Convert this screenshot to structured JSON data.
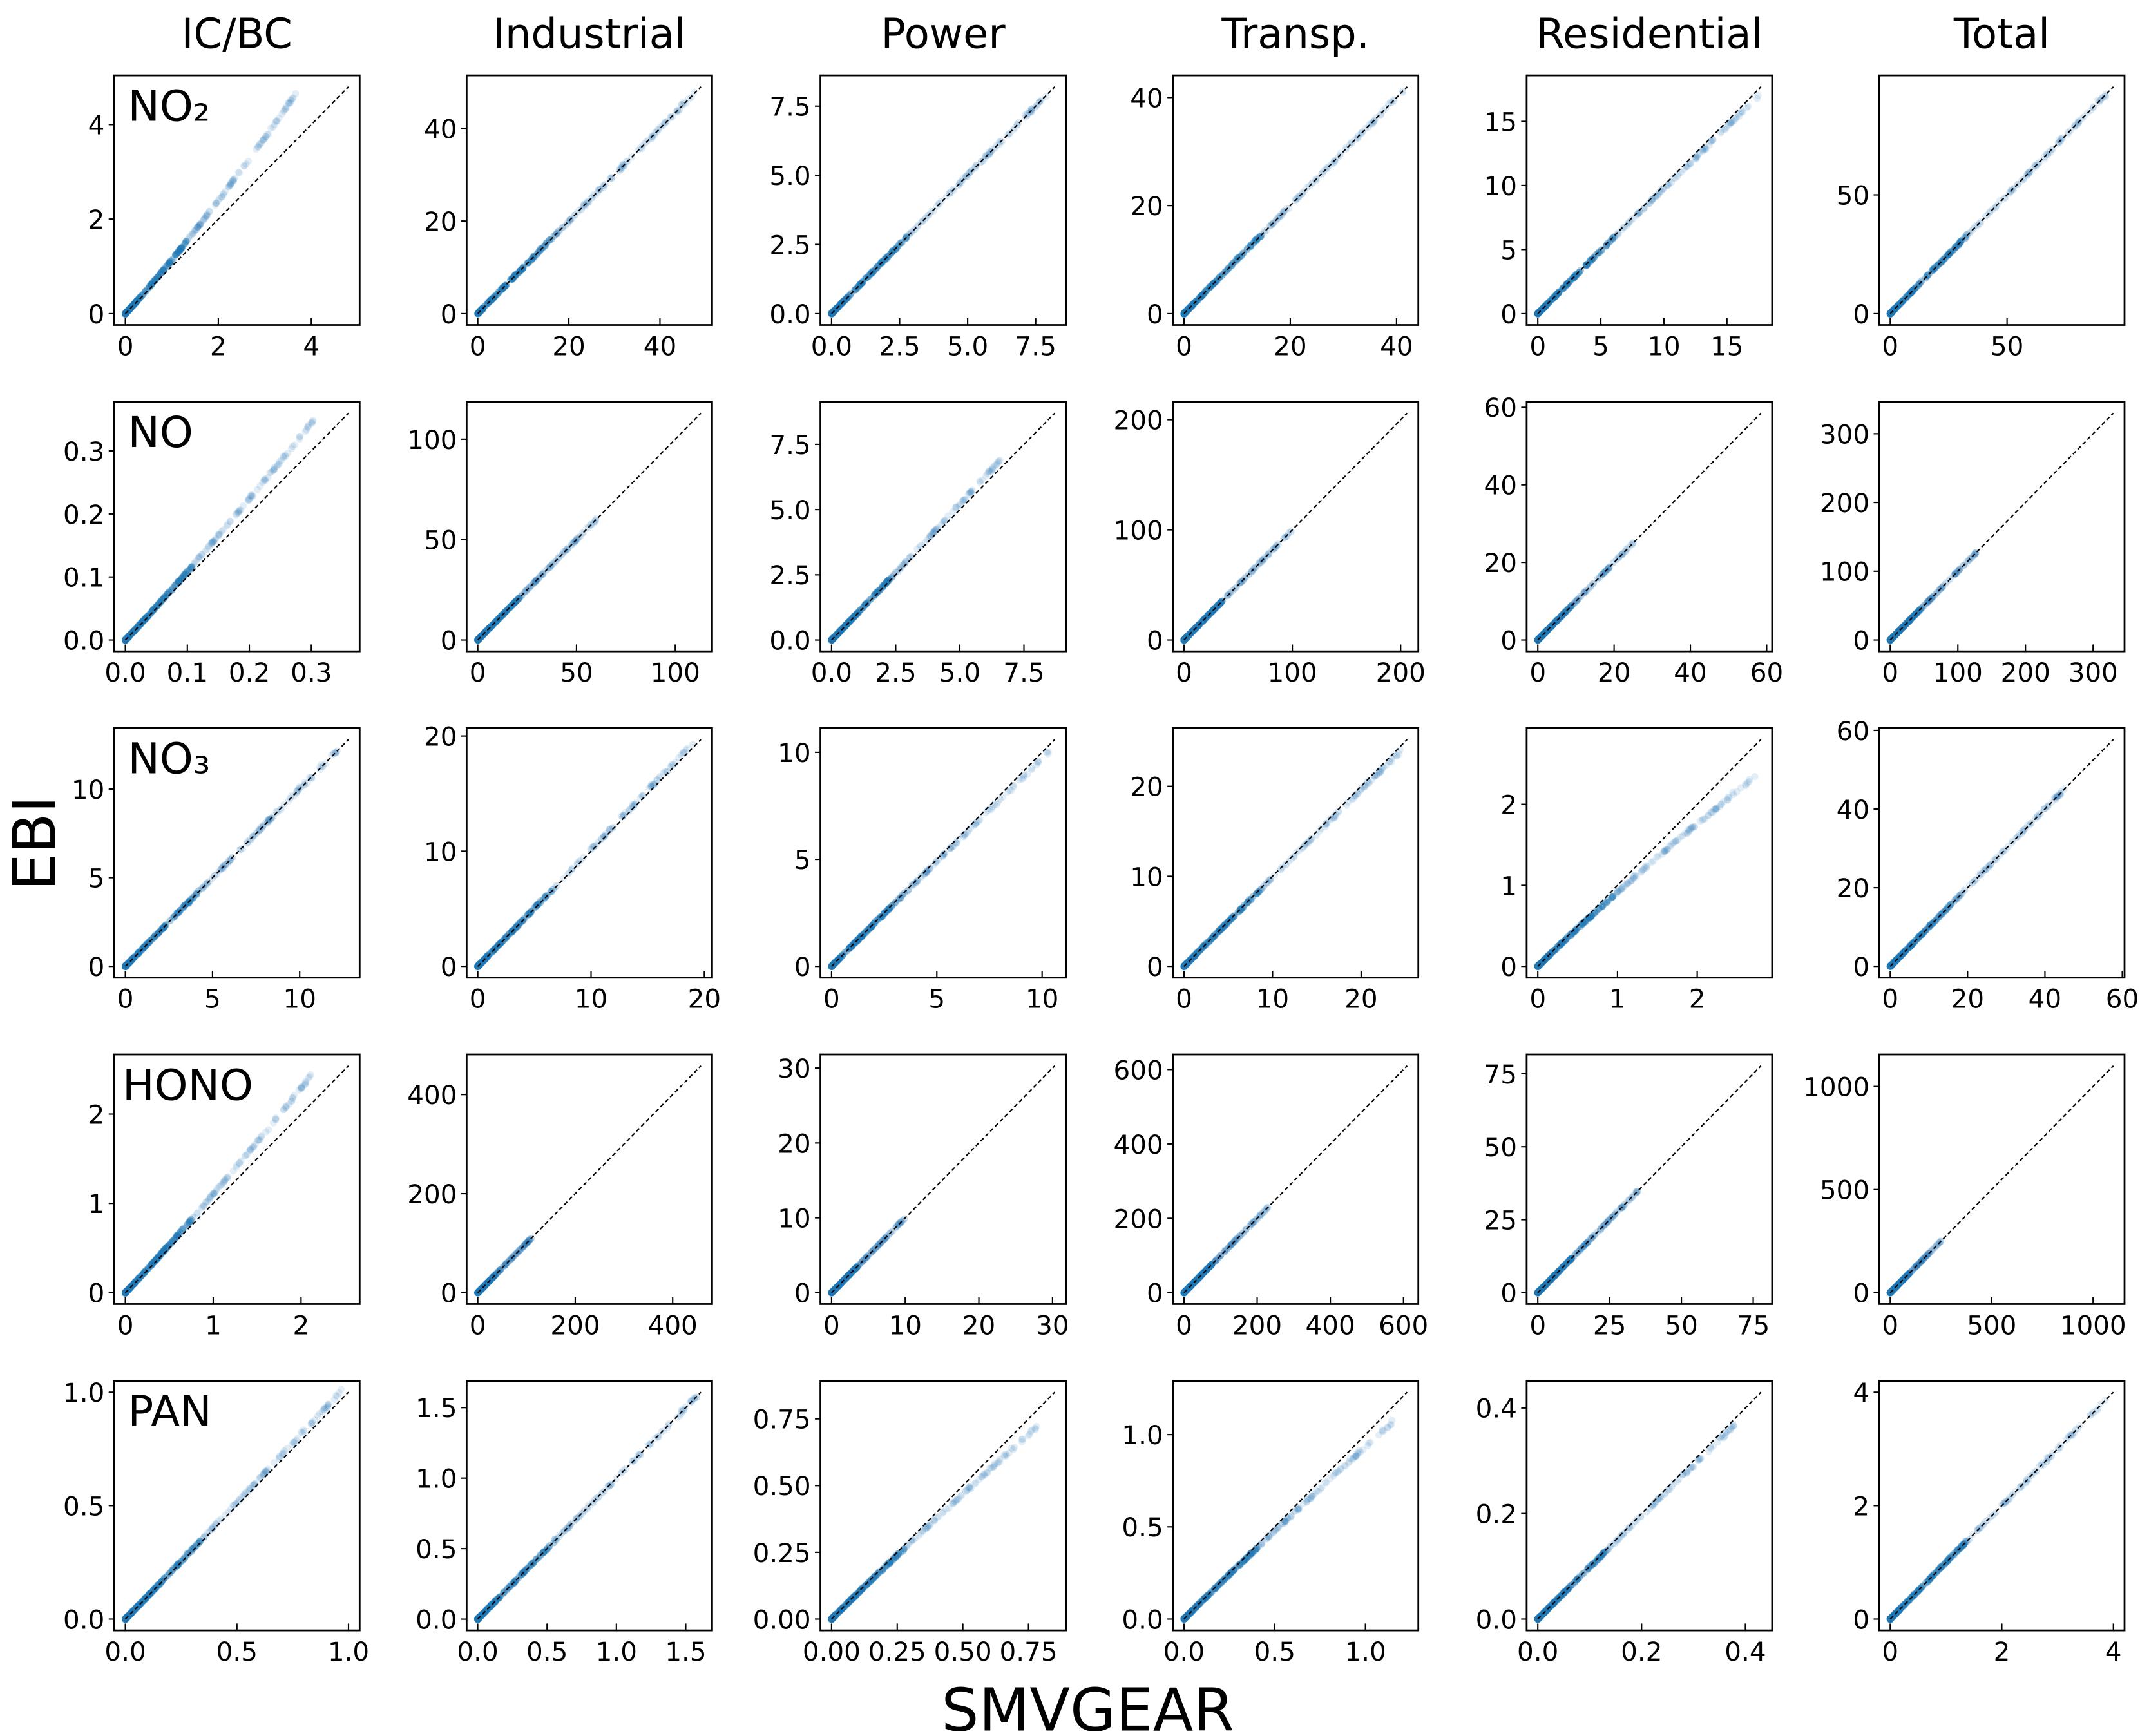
{
  "figure": {
    "columns": [
      "IC/BC",
      "Industrial",
      "Power",
      "Transp.",
      "Residential",
      "Total"
    ],
    "rows": [
      "NO₂",
      "NO",
      "NO₃",
      "HONO",
      "PAN"
    ],
    "xlabel": "SMVGEAR",
    "ylabel": "EBI",
    "point_color": "#1f77b4",
    "reference_line": "1:1 dashed black"
  },
  "chart_data": [
    {
      "type": "scatter",
      "row": "NO₂",
      "column": "IC/BC",
      "xlim": [
        -0.24,
        5.04
      ],
      "ylim": [
        -0.24,
        5.04
      ],
      "xticks": [
        "0",
        "2",
        "4"
      ],
      "yticks": [
        "0",
        "2",
        "4"
      ],
      "points_max_x": 3.75,
      "slope_high": 1.27
    },
    {
      "type": "scatter",
      "row": "NO₂",
      "column": "Industrial",
      "xlim": [
        -2.45,
        51.45
      ],
      "ylim": [
        -2.45,
        51.45
      ],
      "xticks": [
        "0",
        "20",
        "40"
      ],
      "yticks": [
        "0",
        "20",
        "40"
      ],
      "points_max_x": 48,
      "slope_high": 1.0
    },
    {
      "type": "scatter",
      "row": "NO₂",
      "column": "Power",
      "xlim": [
        -0.41,
        8.61
      ],
      "ylim": [
        -0.41,
        8.61
      ],
      "xticks": [
        "0.0",
        "2.5",
        "5.0",
        "7.5"
      ],
      "yticks": [
        "0.0",
        "2.5",
        "5.0",
        "7.5"
      ],
      "points_max_x": 8.1,
      "slope_high": 1.0
    },
    {
      "type": "scatter",
      "row": "NO₂",
      "column": "Transp.",
      "xlim": [
        -2.1,
        44.1
      ],
      "ylim": [
        -2.1,
        44.1
      ],
      "xticks": [
        "0",
        "20",
        "40"
      ],
      "yticks": [
        "0",
        "20",
        "40"
      ],
      "points_max_x": 41.5,
      "slope_high": 1.0
    },
    {
      "type": "scatter",
      "row": "NO₂",
      "column": "Residential",
      "xlim": [
        -0.885,
        18.585
      ],
      "ylim": [
        -0.885,
        18.585
      ],
      "xticks": [
        "0",
        "5",
        "10",
        "15"
      ],
      "yticks": [
        "0",
        "5",
        "10",
        "15"
      ],
      "points_max_x": 17.5,
      "slope_high": 0.97
    },
    {
      "type": "scatter",
      "row": "NO₂",
      "column": "Total",
      "xlim": [
        -4.78,
        100.28
      ],
      "ylim": [
        -4.78,
        100.28
      ],
      "xticks": [
        "0",
        "50"
      ],
      "yticks": [
        "0",
        "50"
      ],
      "points_max_x": 94,
      "slope_high": 1.0
    },
    {
      "type": "scatter",
      "row": "NO",
      "column": "IC/BC",
      "xlim": [
        -0.018,
        0.378
      ],
      "ylim": [
        -0.018,
        0.378
      ],
      "xticks": [
        "0.0",
        "0.1",
        "0.2",
        "0.3"
      ],
      "yticks": [
        "0.0",
        "0.1",
        "0.2",
        "0.3"
      ],
      "points_max_x": 0.31,
      "slope_high": 1.15
    },
    {
      "type": "scatter",
      "row": "NO",
      "column": "Industrial",
      "xlim": [
        -5.65,
        118.65
      ],
      "ylim": [
        -5.65,
        118.65
      ],
      "xticks": [
        "0",
        "50",
        "100"
      ],
      "yticks": [
        "0",
        "50",
        "100"
      ],
      "points_max_x": 60,
      "slope_high": 1.0
    },
    {
      "type": "scatter",
      "row": "NO",
      "column": "Power",
      "xlim": [
        -0.435,
        9.135
      ],
      "ylim": [
        -0.435,
        9.135
      ],
      "xticks": [
        "0.0",
        "2.5",
        "5.0",
        "7.5"
      ],
      "yticks": [
        "0.0",
        "2.5",
        "5.0",
        "7.5"
      ],
      "points_max_x": 6.6,
      "slope_high": 1.05
    },
    {
      "type": "scatter",
      "row": "NO",
      "column": "Transp.",
      "xlim": [
        -10.3,
        216.3
      ],
      "ylim": [
        -10.3,
        216.3
      ],
      "xticks": [
        "0",
        "100",
        "200"
      ],
      "yticks": [
        "0",
        "100",
        "200"
      ],
      "points_max_x": 100,
      "slope_high": 1.0
    },
    {
      "type": "scatter",
      "row": "NO",
      "column": "Residential",
      "xlim": [
        -2.93,
        61.43
      ],
      "ylim": [
        -2.93,
        61.43
      ],
      "xticks": [
        "0",
        "20",
        "40",
        "60"
      ],
      "yticks": [
        "0",
        "20",
        "40",
        "60"
      ],
      "points_max_x": 25,
      "slope_high": 1.0
    },
    {
      "type": "scatter",
      "row": "NO",
      "column": "Total",
      "xlim": [
        -16.5,
        346.5
      ],
      "ylim": [
        -16.5,
        346.5
      ],
      "xticks": [
        "0",
        "100",
        "200",
        "300"
      ],
      "yticks": [
        "0",
        "100",
        "200",
        "300"
      ],
      "points_max_x": 130,
      "slope_high": 1.0
    },
    {
      "type": "scatter",
      "row": "NO₃",
      "column": "IC/BC",
      "xlim": [
        -0.64,
        13.44
      ],
      "ylim": [
        -0.64,
        13.44
      ],
      "xticks": [
        "0",
        "5",
        "10"
      ],
      "yticks": [
        "0",
        "5",
        "10"
      ],
      "points_max_x": 12.3,
      "slope_high": 1.0
    },
    {
      "type": "scatter",
      "row": "NO₃",
      "column": "Industrial",
      "xlim": [
        -0.985,
        20.685
      ],
      "ylim": [
        -0.985,
        20.685
      ],
      "xticks": [
        "0",
        "10",
        "20"
      ],
      "yticks": [
        "0",
        "10",
        "20"
      ],
      "points_max_x": 19,
      "slope_high": 1.02
    },
    {
      "type": "scatter",
      "row": "NO₃",
      "column": "Power",
      "xlim": [
        -0.53,
        11.13
      ],
      "ylim": [
        -0.53,
        11.13
      ],
      "xticks": [
        "0",
        "5",
        "10"
      ],
      "yticks": [
        "0",
        "5",
        "10"
      ],
      "points_max_x": 10.3,
      "slope_high": 0.97
    },
    {
      "type": "scatter",
      "row": "NO₃",
      "column": "Transp.",
      "xlim": [
        -1.26,
        26.46
      ],
      "ylim": [
        -1.26,
        26.46
      ],
      "xticks": [
        "0",
        "10",
        "20"
      ],
      "yticks": [
        "0",
        "10",
        "20"
      ],
      "points_max_x": 24.5,
      "slope_high": 0.98
    },
    {
      "type": "scatter",
      "row": "NO₃",
      "column": "Residential",
      "xlim": [
        -0.14,
        2.94
      ],
      "ylim": [
        -0.14,
        2.94
      ],
      "xticks": [
        "0",
        "1",
        "2"
      ],
      "yticks": [
        "0",
        "1",
        "2"
      ],
      "points_max_x": 2.75,
      "slope_high": 0.86
    },
    {
      "type": "scatter",
      "row": "NO₃",
      "column": "Total",
      "xlim": [
        -2.885,
        60.585
      ],
      "ylim": [
        -2.885,
        60.585
      ],
      "xticks": [
        "0",
        "20",
        "40",
        "60"
      ],
      "yticks": [
        "0",
        "20",
        "40",
        "60"
      ],
      "points_max_x": 45,
      "slope_high": 1.0
    },
    {
      "type": "scatter",
      "row": "HONO",
      "column": "IC/BC",
      "xlim": [
        -0.127,
        2.667
      ],
      "ylim": [
        -0.127,
        2.667
      ],
      "xticks": [
        "0",
        "1",
        "2"
      ],
      "yticks": [
        "0",
        "1",
        "2"
      ],
      "points_max_x": 2.15,
      "slope_high": 1.15
    },
    {
      "type": "scatter",
      "row": "HONO",
      "column": "Industrial",
      "xlim": [
        -22.9,
        480.9
      ],
      "ylim": [
        -22.9,
        480.9
      ],
      "xticks": [
        "0",
        "200",
        "400"
      ],
      "yticks": [
        "0",
        "200",
        "400"
      ],
      "points_max_x": 110,
      "slope_high": 1.0
    },
    {
      "type": "scatter",
      "row": "HONO",
      "column": "Power",
      "xlim": [
        -1.515,
        31.815
      ],
      "ylim": [
        -1.515,
        31.815
      ],
      "xticks": [
        "0",
        "10",
        "20",
        "30"
      ],
      "yticks": [
        "0",
        "10",
        "20",
        "30"
      ],
      "points_max_x": 10,
      "slope_high": 1.0
    },
    {
      "type": "scatter",
      "row": "HONO",
      "column": "Transp.",
      "xlim": [
        -30.5,
        640.5
      ],
      "ylim": [
        -30.5,
        640.5
      ],
      "xticks": [
        "0",
        "200",
        "400",
        "600"
      ],
      "yticks": [
        "0",
        "200",
        "400",
        "600"
      ],
      "points_max_x": 230,
      "slope_high": 1.0
    },
    {
      "type": "scatter",
      "row": "HONO",
      "column": "Residential",
      "xlim": [
        -3.885,
        81.585
      ],
      "ylim": [
        -3.885,
        81.585
      ],
      "xticks": [
        "0",
        "25",
        "50",
        "75"
      ],
      "yticks": [
        "0",
        "25",
        "50",
        "75"
      ],
      "points_max_x": 35,
      "slope_high": 1.0
    },
    {
      "type": "scatter",
      "row": "HONO",
      "column": "Total",
      "xlim": [
        -55,
        1155
      ],
      "ylim": [
        -55,
        1155
      ],
      "xticks": [
        "0",
        "500",
        "1000"
      ],
      "yticks": [
        "0",
        "500",
        "1000"
      ],
      "points_max_x": 250,
      "slope_high": 1.0
    },
    {
      "type": "scatter",
      "row": "PAN",
      "column": "IC/BC",
      "xlim": [
        -0.05,
        1.05
      ],
      "ylim": [
        -0.05,
        1.05
      ],
      "xticks": [
        "0.0",
        "0.5",
        "1.0"
      ],
      "yticks": [
        "0.0",
        "0.5",
        "1.0"
      ],
      "points_max_x": 0.97,
      "slope_high": 1.04
    },
    {
      "type": "scatter",
      "row": "PAN",
      "column": "Industrial",
      "xlim": [
        -0.08,
        1.69
      ],
      "ylim": [
        -0.08,
        1.69
      ],
      "xticks": [
        "0.0",
        "0.5",
        "1.0",
        "1.5"
      ],
      "yticks": [
        "0.0",
        "0.5",
        "1.0",
        "1.5"
      ],
      "points_max_x": 1.6,
      "slope_high": 1.0
    },
    {
      "type": "scatter",
      "row": "PAN",
      "column": "Power",
      "xlim": [
        -0.0425,
        0.8925
      ],
      "ylim": [
        -0.0425,
        0.8925
      ],
      "xticks": [
        "0.00",
        "0.25",
        "0.50",
        "0.75"
      ],
      "yticks": [
        "0.00",
        "0.25",
        "0.50",
        "0.75"
      ],
      "points_max_x": 0.8,
      "slope_high": 0.92
    },
    {
      "type": "scatter",
      "row": "PAN",
      "column": "Transp.",
      "xlim": [
        -0.0615,
        1.2915
      ],
      "ylim": [
        -0.0615,
        1.2915
      ],
      "xticks": [
        "0.0",
        "0.5",
        "1.0"
      ],
      "yticks": [
        "0.0",
        "0.5",
        "1.0"
      ],
      "points_max_x": 1.15,
      "slope_high": 0.93
    },
    {
      "type": "scatter",
      "row": "PAN",
      "column": "Residential",
      "xlim": [
        -0.0215,
        0.4515
      ],
      "ylim": [
        -0.0215,
        0.4515
      ],
      "xticks": [
        "0.0",
        "0.2",
        "0.4"
      ],
      "yticks": [
        "0.0",
        "0.2",
        "0.4"
      ],
      "points_max_x": 0.38,
      "slope_high": 0.97
    },
    {
      "type": "scatter",
      "row": "PAN",
      "column": "Total",
      "xlim": [
        -0.2,
        4.2
      ],
      "ylim": [
        -0.2,
        4.2
      ],
      "xticks": [
        "0",
        "2",
        "4"
      ],
      "yticks": [
        "0",
        "2",
        "4"
      ],
      "points_max_x": 3.9,
      "slope_high": 1.0
    }
  ]
}
